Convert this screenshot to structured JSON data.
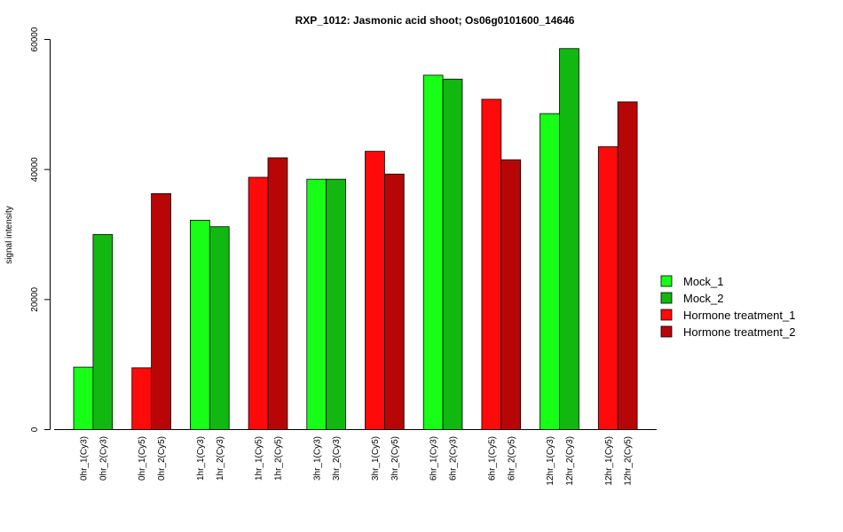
{
  "chart_data": {
    "type": "bar",
    "title": "RXP_1012: Jasmonic acid shoot; Os06g0101600_14646",
    "xlabel": "",
    "ylabel": "signal intensity",
    "ylim": [
      0,
      60000
    ],
    "yticks": [
      0,
      20000,
      40000,
      60000
    ],
    "legend_position": "right",
    "series": [
      {
        "name": "Mock_1",
        "color": "#17ff17"
      },
      {
        "name": "Mock_2",
        "color": "#10b810"
      },
      {
        "name": "Hormone treatment_1",
        "color": "#ff0a0a"
      },
      {
        "name": "Hormone treatment_2",
        "color": "#b80606"
      }
    ],
    "bars": [
      {
        "label": "0hr_1(Cy3)",
        "value": 9600,
        "series": 0
      },
      {
        "label": "0hr_2(Cy3)",
        "value": 30000,
        "series": 1
      },
      {
        "label": "0hr_1(Cy5)",
        "value": 9500,
        "series": 2
      },
      {
        "label": "0hr_2(Cy5)",
        "value": 36300,
        "series": 3
      },
      {
        "label": "1hr_1(Cy3)",
        "value": 32200,
        "series": 0
      },
      {
        "label": "1hr_2(Cy3)",
        "value": 31200,
        "series": 1
      },
      {
        "label": "1hr_1(Cy5)",
        "value": 38800,
        "series": 2
      },
      {
        "label": "1hr_2(Cy5)",
        "value": 41800,
        "series": 3
      },
      {
        "label": "3hr_1(Cy3)",
        "value": 38500,
        "series": 0
      },
      {
        "label": "3hr_2(Cy3)",
        "value": 38500,
        "series": 1
      },
      {
        "label": "3hr_1(Cy5)",
        "value": 42800,
        "series": 2
      },
      {
        "label": "3hr_2(Cy5)",
        "value": 39300,
        "series": 3
      },
      {
        "label": "6hr_1(Cy3)",
        "value": 54500,
        "series": 0
      },
      {
        "label": "6hr_2(Cy3)",
        "value": 53900,
        "series": 1
      },
      {
        "label": "6hr_1(Cy5)",
        "value": 50800,
        "series": 2
      },
      {
        "label": "6hr_2(Cy5)",
        "value": 41500,
        "series": 3
      },
      {
        "label": "12hr_1(Cy3)",
        "value": 48600,
        "series": 0
      },
      {
        "label": "12hr_2(Cy3)",
        "value": 58600,
        "series": 1
      },
      {
        "label": "12hr_1(Cy5)",
        "value": 43500,
        "series": 2
      },
      {
        "label": "12hr_2(Cy5)",
        "value": 50400,
        "series": 3
      }
    ]
  }
}
